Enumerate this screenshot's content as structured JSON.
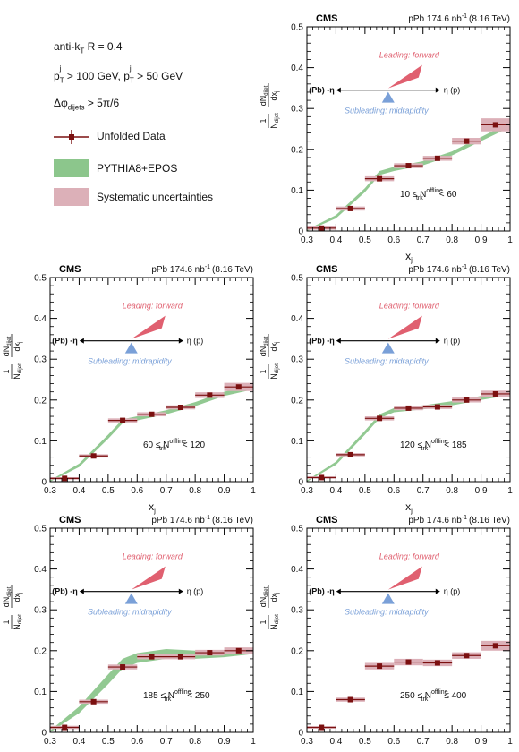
{
  "legend": {
    "jet_algo": "anti-k",
    "jet_algo_sub": "T",
    "jet_radius": "R = 0.4",
    "pt_cut_1": "p",
    "pt_cut_1_sup": "j",
    "pt_cut_1_sub1": "T",
    "pt_cut_1_val": "> 100 GeV,",
    "pt_cut_2": "p",
    "pt_cut_2_sup": "j",
    "pt_cut_2_sub2": "T",
    "pt_cut_2_val": "> 50 GeV",
    "dphi_label": "Δφ",
    "dphi_sub": "dijets",
    "dphi_val": "> 5π/6",
    "data_label": "Unfolded Data",
    "mc_label": "PYTHIA8+EPOS",
    "syst_label": "Systematic uncertainties"
  },
  "colors": {
    "data": "#7b1010",
    "mc_band": "#8cc68c",
    "syst_band": "#dcb0b8",
    "leading_arrow": "#e06070",
    "subleading_arrow": "#7aa0d8"
  },
  "common": {
    "experiment": "CMS",
    "lumi": "pPb 174.6 nb",
    "lumi_sup": "-1",
    "energy": "(8.16 TeV)",
    "leading_text": "Leading: forward",
    "subleading_text": "Subleading: midrapidity",
    "pb_label": "(Pb) -η",
    "p_label": "η (p)",
    "xlabel": "x",
    "xlabel_sub": "j",
    "ylabel_frac_num": "1",
    "ylabel_frac_den": "N",
    "ylabel_dN": "dN",
    "ylabel_dx": "dx",
    "ylabel_sub": "dijet"
  },
  "chart_data": [
    {
      "type": "scatter",
      "panel": "top-right",
      "range_label": "10 ≤ N",
      "range_label_sup": "offline",
      "range_label_sub": "trk",
      "range_label_end": "< 60",
      "xlim": [
        0.3,
        1.0
      ],
      "ylim": [
        0,
        0.5
      ],
      "x": [
        0.35,
        0.45,
        0.55,
        0.65,
        0.75,
        0.85,
        0.95
      ],
      "data": [
        0.007,
        0.055,
        0.128,
        0.16,
        0.178,
        0.22,
        0.26
      ],
      "syst": [
        0.004,
        0.005,
        0.006,
        0.006,
        0.006,
        0.008,
        0.016
      ],
      "mc_x": [
        0.3,
        0.4,
        0.5,
        0.55,
        0.6,
        0.7,
        0.8,
        0.9,
        1.0
      ],
      "mc": [
        0.0,
        0.035,
        0.1,
        0.142,
        0.152,
        0.166,
        0.19,
        0.225,
        0.26
      ],
      "mc_err": [
        0.003,
        0.004,
        0.005,
        0.005,
        0.005,
        0.005,
        0.005,
        0.005,
        0.006
      ]
    },
    {
      "type": "scatter",
      "panel": "middle-left",
      "range_label": "60 ≤ N",
      "range_label_sup": "offline",
      "range_label_sub": "trk",
      "range_label_end": "< 120",
      "xlim": [
        0.3,
        1.0
      ],
      "ylim": [
        0,
        0.5
      ],
      "x": [
        0.35,
        0.45,
        0.55,
        0.65,
        0.75,
        0.85,
        0.95
      ],
      "data": [
        0.008,
        0.063,
        0.15,
        0.165,
        0.182,
        0.212,
        0.232
      ],
      "syst": [
        0.003,
        0.004,
        0.005,
        0.005,
        0.005,
        0.007,
        0.01
      ],
      "mc_x": [
        0.3,
        0.4,
        0.5,
        0.55,
        0.6,
        0.7,
        0.8,
        0.9,
        1.0
      ],
      "mc": [
        0.0,
        0.04,
        0.11,
        0.148,
        0.155,
        0.17,
        0.19,
        0.215,
        0.232
      ],
      "mc_err": [
        0.003,
        0.004,
        0.005,
        0.005,
        0.005,
        0.005,
        0.005,
        0.005,
        0.006
      ]
    },
    {
      "type": "scatter",
      "panel": "middle-right",
      "range_label": "120 ≤ N",
      "range_label_sup": "offline",
      "range_label_sub": "trk",
      "range_label_end": "< 185",
      "xlim": [
        0.3,
        1.0
      ],
      "ylim": [
        0,
        0.5
      ],
      "x": [
        0.35,
        0.45,
        0.55,
        0.65,
        0.75,
        0.85,
        0.95
      ],
      "data": [
        0.01,
        0.066,
        0.155,
        0.18,
        0.183,
        0.2,
        0.215
      ],
      "syst": [
        0.003,
        0.004,
        0.005,
        0.005,
        0.005,
        0.006,
        0.008
      ],
      "mc_x": [
        0.3,
        0.4,
        0.5,
        0.55,
        0.6,
        0.7,
        0.8,
        0.9,
        1.0
      ],
      "mc": [
        0.0,
        0.045,
        0.12,
        0.16,
        0.175,
        0.182,
        0.192,
        0.205,
        0.218
      ],
      "mc_err": [
        0.003,
        0.004,
        0.005,
        0.005,
        0.005,
        0.005,
        0.005,
        0.005,
        0.006
      ]
    },
    {
      "type": "scatter",
      "panel": "bottom-left",
      "range_label": "185 ≤ N",
      "range_label_sup": "offline",
      "range_label_sub": "trk",
      "range_label_end": "< 250",
      "xlim": [
        0.3,
        1.0
      ],
      "ylim": [
        0,
        0.5
      ],
      "x": [
        0.35,
        0.45,
        0.55,
        0.65,
        0.75,
        0.85,
        0.95
      ],
      "data": [
        0.012,
        0.075,
        0.16,
        0.185,
        0.185,
        0.195,
        0.2
      ],
      "syst": [
        0.004,
        0.005,
        0.006,
        0.006,
        0.006,
        0.007,
        0.008
      ],
      "mc_x": [
        0.3,
        0.4,
        0.5,
        0.55,
        0.6,
        0.7,
        0.8,
        0.9,
        1.0
      ],
      "mc": [
        0.0,
        0.055,
        0.13,
        0.168,
        0.182,
        0.192,
        0.19,
        0.192,
        0.198
      ],
      "mc_err": [
        0.004,
        0.008,
        0.012,
        0.012,
        0.012,
        0.012,
        0.01,
        0.008,
        0.006
      ]
    },
    {
      "type": "scatter",
      "panel": "bottom-right",
      "range_label": "250 ≤ N",
      "range_label_sup": "offline",
      "range_label_sub": "trk",
      "range_label_end": "≤ 400",
      "xlim": [
        0.3,
        1.0
      ],
      "ylim": [
        0,
        0.5
      ],
      "x": [
        0.35,
        0.45,
        0.55,
        0.65,
        0.75,
        0.85,
        0.95
      ],
      "data": [
        0.012,
        0.08,
        0.162,
        0.172,
        0.17,
        0.188,
        0.212
      ],
      "syst": [
        0.003,
        0.005,
        0.008,
        0.008,
        0.008,
        0.008,
        0.012
      ],
      "mc_x": [],
      "mc": [],
      "mc_err": []
    }
  ]
}
